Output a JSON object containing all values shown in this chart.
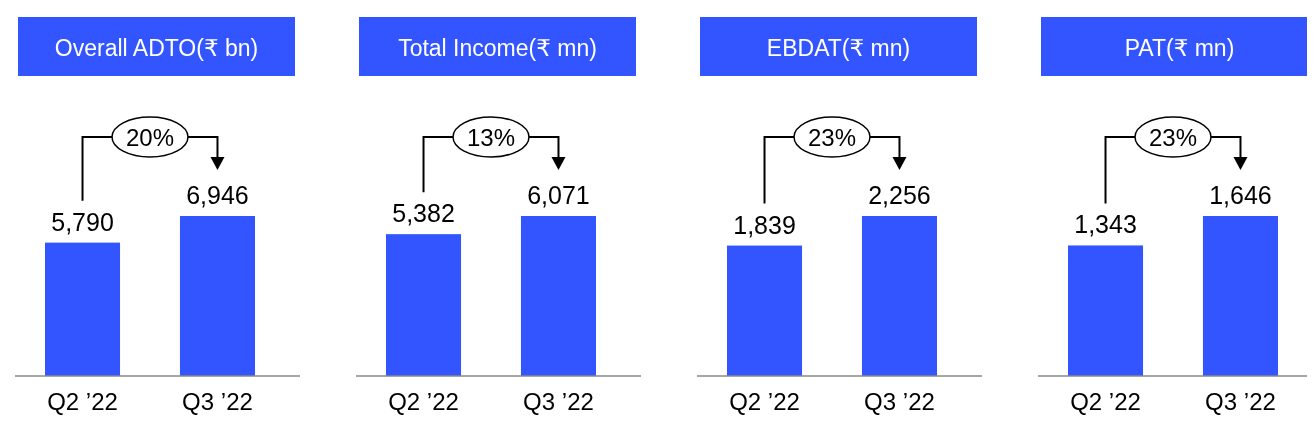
{
  "chart_data": [
    {
      "type": "bar",
      "title": "Overall ADTO(₹ bn)",
      "categories": [
        "Q2 ’22",
        "Q3 ’22"
      ],
      "values": [
        5790,
        6946
      ],
      "value_labels": [
        "5,790",
        "6,946"
      ],
      "color": "#3355ff",
      "annotations": [
        "20%"
      ]
    },
    {
      "type": "bar",
      "title": "Total Income(₹ mn)",
      "categories": [
        "Q2 ’22",
        "Q3 ’22"
      ],
      "values": [
        5382,
        6071
      ],
      "value_labels": [
        "5,382",
        "6,071"
      ],
      "color": "#3355ff",
      "annotations": [
        "13%"
      ]
    },
    {
      "type": "bar",
      "title": "EBDAT(₹ mn)",
      "categories": [
        "Q2 ’22",
        "Q3 ’22"
      ],
      "values": [
        1839,
        2256
      ],
      "value_labels": [
        "1,839",
        "2,256"
      ],
      "color": "#3355ff",
      "annotations": [
        "23%"
      ]
    },
    {
      "type": "bar",
      "title": "PAT(₹ mn)",
      "categories": [
        "Q2 ’22",
        "Q3 ’22"
      ],
      "values": [
        1343,
        1646
      ],
      "value_labels": [
        "1,343",
        "1,646"
      ],
      "color": "#3355ff",
      "annotations": [
        "23%"
      ]
    }
  ]
}
